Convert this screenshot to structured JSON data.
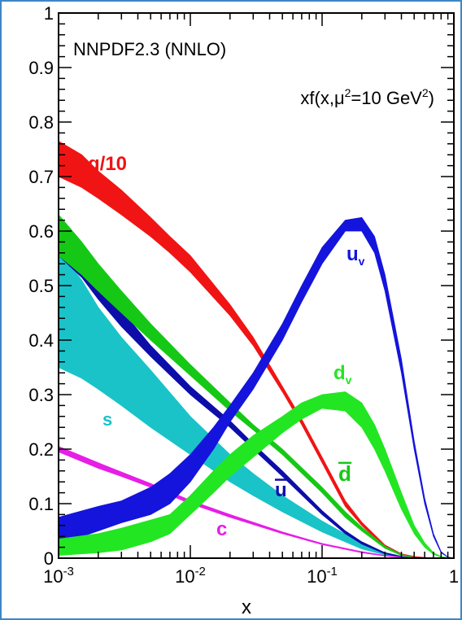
{
  "chart_data": {
    "type": "area",
    "title": "NNPDF2.3 (NNLO)",
    "subtitle": {
      "prefix": "xf(x,μ",
      "sup1": "2",
      "mid": "=10 GeV",
      "sup2": "2",
      "suffix": ")"
    },
    "xlabel": "x",
    "x_scale": "log",
    "xlim": [
      0.001,
      1
    ],
    "ylim": [
      0,
      1
    ],
    "x_tick_labels": [
      {
        "value": 0.001,
        "base": "10",
        "exp": "-3"
      },
      {
        "value": 0.01,
        "base": "10",
        "exp": "-2"
      },
      {
        "value": 0.1,
        "base": "10",
        "exp": "-1"
      },
      {
        "value": 1,
        "base": "1",
        "exp": ""
      }
    ],
    "y_tick_labels": [
      {
        "value": 0,
        "label": "0"
      },
      {
        "value": 0.1,
        "label": "0.1"
      },
      {
        "value": 0.2,
        "label": "0.2"
      },
      {
        "value": 0.3,
        "label": "0.3"
      },
      {
        "value": 0.4,
        "label": "0.4"
      },
      {
        "value": 0.5,
        "label": "0.5"
      },
      {
        "value": 0.6,
        "label": "0.6"
      },
      {
        "value": 0.7,
        "label": "0.7"
      },
      {
        "value": 0.8,
        "label": "0.8"
      },
      {
        "value": 0.9,
        "label": "0.9"
      },
      {
        "value": 1,
        "label": "1"
      }
    ],
    "series": [
      {
        "name": "s",
        "label": {
          "text": "s",
          "sub": "",
          "bar": false
        },
        "color": "#19c3c8",
        "x": [
          0.001,
          0.0015,
          0.002,
          0.003,
          0.005,
          0.01,
          0.02,
          0.03,
          0.05,
          0.1,
          0.2,
          0.3,
          0.4,
          0.5,
          0.7
        ],
        "lower": [
          0.35,
          0.33,
          0.31,
          0.28,
          0.24,
          0.19,
          0.14,
          0.115,
          0.085,
          0.048,
          0.017,
          0.006,
          0.002,
          0.0005,
          0
        ],
        "upper": [
          0.565,
          0.51,
          0.46,
          0.405,
          0.345,
          0.26,
          0.19,
          0.155,
          0.115,
          0.068,
          0.027,
          0.01,
          0.004,
          0.001,
          0
        ]
      },
      {
        "name": "g/10",
        "label": {
          "text": "g/10",
          "sub": "",
          "bar": false
        },
        "color": "#f01414",
        "x": [
          0.001,
          0.0015,
          0.002,
          0.003,
          0.005,
          0.007,
          0.01,
          0.02,
          0.03,
          0.05,
          0.07,
          0.1,
          0.15,
          0.2,
          0.3,
          0.4,
          0.5,
          0.7
        ],
        "lower": [
          0.7,
          0.68,
          0.66,
          0.63,
          0.59,
          0.56,
          0.525,
          0.445,
          0.39,
          0.305,
          0.245,
          0.175,
          0.095,
          0.06,
          0.02,
          0.006,
          0.002,
          0
        ],
        "upper": [
          0.765,
          0.74,
          0.71,
          0.675,
          0.625,
          0.59,
          0.555,
          0.465,
          0.405,
          0.315,
          0.255,
          0.185,
          0.105,
          0.066,
          0.024,
          0.008,
          0.003,
          0
        ]
      },
      {
        "name": "ubar",
        "label": {
          "text": "u",
          "sub": "",
          "bar": true
        },
        "color": "#0d0daa",
        "x": [
          0.001,
          0.0015,
          0.002,
          0.003,
          0.005,
          0.01,
          0.02,
          0.03,
          0.05,
          0.1,
          0.15,
          0.2,
          0.3,
          0.4,
          0.5
        ],
        "lower": [
          0.555,
          0.515,
          0.475,
          0.425,
          0.37,
          0.3,
          0.24,
          0.2,
          0.15,
          0.08,
          0.045,
          0.026,
          0.008,
          0.002,
          0
        ],
        "upper": [
          0.605,
          0.555,
          0.51,
          0.455,
          0.39,
          0.315,
          0.252,
          0.21,
          0.16,
          0.087,
          0.05,
          0.03,
          0.01,
          0.003,
          0
        ]
      },
      {
        "name": "dbar",
        "label": {
          "text": "d",
          "sub": "",
          "bar": true
        },
        "color": "#16c816",
        "x": [
          0.001,
          0.0015,
          0.002,
          0.003,
          0.005,
          0.01,
          0.02,
          0.03,
          0.05,
          0.1,
          0.15,
          0.2,
          0.3,
          0.4,
          0.5
        ],
        "lower": [
          0.555,
          0.52,
          0.49,
          0.45,
          0.4,
          0.335,
          0.27,
          0.235,
          0.19,
          0.12,
          0.075,
          0.05,
          0.018,
          0.005,
          0.001
        ],
        "upper": [
          0.63,
          0.58,
          0.54,
          0.49,
          0.43,
          0.355,
          0.285,
          0.245,
          0.2,
          0.13,
          0.085,
          0.057,
          0.022,
          0.007,
          0.001
        ]
      },
      {
        "name": "c",
        "label": {
          "text": "c",
          "sub": "",
          "bar": false
        },
        "color": "#e61ee6",
        "x": [
          0.001,
          0.002,
          0.003,
          0.005,
          0.01,
          0.02,
          0.05,
          0.1,
          0.2,
          0.3,
          0.5
        ],
        "lower": [
          0.195,
          0.165,
          0.15,
          0.13,
          0.1,
          0.075,
          0.045,
          0.025,
          0.01,
          0.004,
          0
        ],
        "upper": [
          0.205,
          0.175,
          0.158,
          0.137,
          0.106,
          0.08,
          0.048,
          0.027,
          0.012,
          0.005,
          0
        ]
      },
      {
        "name": "u_v",
        "label": {
          "text": "u",
          "sub": "v",
          "bar": false
        },
        "color": "#1414dc",
        "x": [
          0.001,
          0.002,
          0.003,
          0.005,
          0.007,
          0.01,
          0.015,
          0.02,
          0.03,
          0.05,
          0.07,
          0.1,
          0.15,
          0.2,
          0.25,
          0.3,
          0.4,
          0.5,
          0.6,
          0.7,
          0.8,
          0.9,
          1
        ],
        "lower": [
          0.025,
          0.05,
          0.065,
          0.08,
          0.1,
          0.14,
          0.2,
          0.25,
          0.31,
          0.4,
          0.47,
          0.54,
          0.6,
          0.6,
          0.56,
          0.49,
          0.34,
          0.2,
          0.1,
          0.04,
          0.01,
          0.002,
          0
        ],
        "upper": [
          0.075,
          0.095,
          0.105,
          0.13,
          0.155,
          0.19,
          0.24,
          0.28,
          0.34,
          0.43,
          0.5,
          0.57,
          0.62,
          0.625,
          0.59,
          0.52,
          0.365,
          0.215,
          0.11,
          0.045,
          0.012,
          0.002,
          0
        ]
      },
      {
        "name": "d_v",
        "label": {
          "text": "d",
          "sub": "v",
          "bar": false
        },
        "color": "#22e622",
        "x": [
          0.001,
          0.002,
          0.003,
          0.005,
          0.007,
          0.01,
          0.015,
          0.02,
          0.03,
          0.05,
          0.07,
          0.1,
          0.15,
          0.2,
          0.25,
          0.3,
          0.4,
          0.5,
          0.6,
          0.7,
          0.8,
          0.9,
          1
        ],
        "lower": [
          0.005,
          0.01,
          0.015,
          0.03,
          0.045,
          0.08,
          0.12,
          0.15,
          0.185,
          0.23,
          0.255,
          0.275,
          0.27,
          0.24,
          0.2,
          0.16,
          0.09,
          0.045,
          0.02,
          0.007,
          0.002,
          0,
          0
        ],
        "upper": [
          0.035,
          0.045,
          0.055,
          0.07,
          0.08,
          0.115,
          0.16,
          0.19,
          0.225,
          0.26,
          0.285,
          0.3,
          0.305,
          0.285,
          0.245,
          0.2,
          0.12,
          0.06,
          0.028,
          0.01,
          0.003,
          0.001,
          0
        ]
      }
    ],
    "grid": false
  }
}
